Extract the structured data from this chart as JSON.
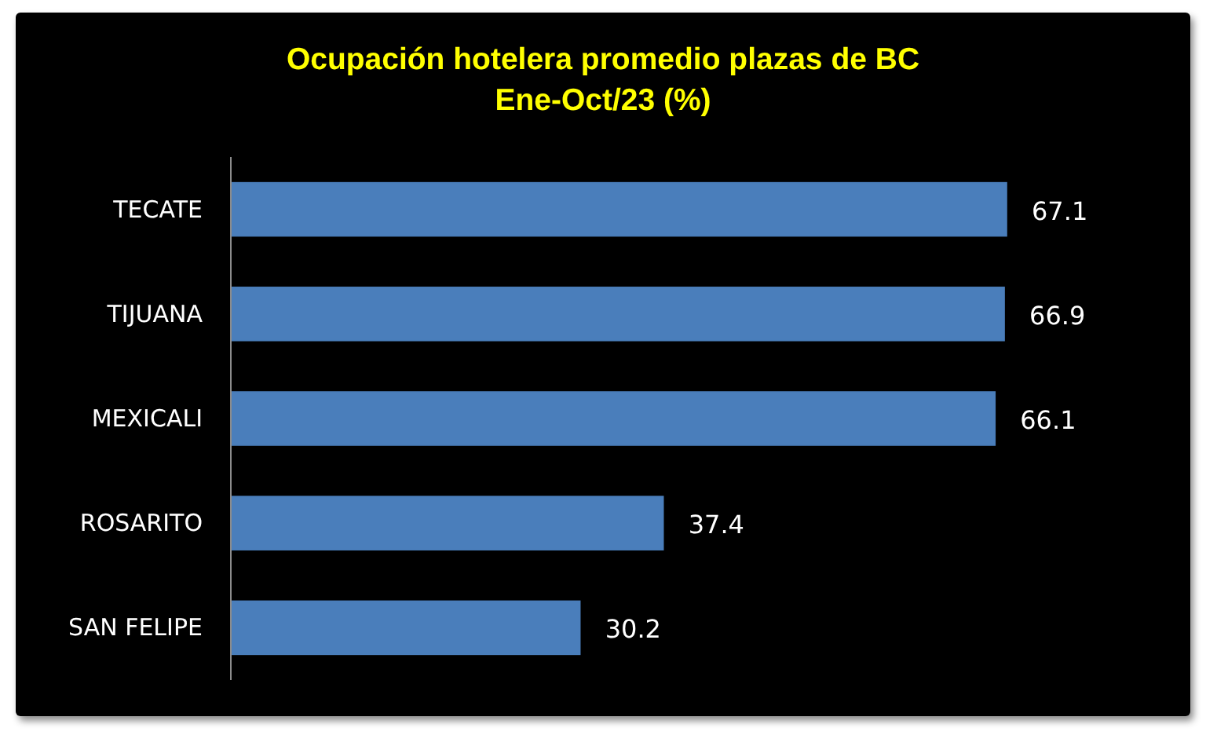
{
  "chart_data": {
    "type": "bar",
    "orientation": "horizontal",
    "title": "Ocupación hotelera promedio plazas de BC",
    "subtitle": "Ene-Oct/23 (%)",
    "categories": [
      "TECATE",
      "TIJUANA",
      "MEXICALI",
      "ROSARITO",
      "SAN FELIPE"
    ],
    "values": [
      67.1,
      66.9,
      66.1,
      37.4,
      30.2
    ],
    "color": "#4a7ebb",
    "data_labels": true
  }
}
